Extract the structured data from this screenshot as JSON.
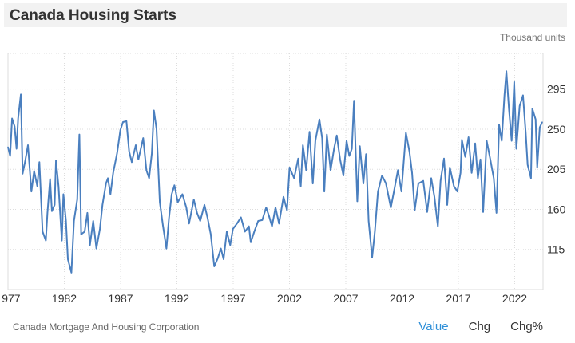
{
  "header": {
    "title": "Canada Housing Starts",
    "units": "Thousand units"
  },
  "footer": {
    "source": "Canada Mortgage And Housing Corporation",
    "tabs": [
      {
        "label": "Value",
        "active": true
      },
      {
        "label": "Chg",
        "active": false
      },
      {
        "label": "Chg%",
        "active": false
      }
    ]
  },
  "colors": {
    "line": "#4a7fbf",
    "active_tab": "#2e8fd8",
    "grid": "#dddddd"
  },
  "chart_data": {
    "type": "line",
    "title": "Canada Housing Starts",
    "ylabel": "Thousand units",
    "xlim": [
      1977,
      2024.45
    ],
    "ylim": [
      70,
      335
    ],
    "x_ticks": [
      1977,
      1982,
      1987,
      1992,
      1997,
      2002,
      2007,
      2012,
      2017,
      2022
    ],
    "y_ticks": [
      115,
      160,
      205,
      250,
      295
    ],
    "y_axis_position": "right",
    "grid": true,
    "series": [
      {
        "points": [
          [
            1977.0,
            230
          ],
          [
            1977.19,
            220
          ],
          [
            1977.36,
            262
          ],
          [
            1977.59,
            253
          ],
          [
            1977.76,
            228
          ],
          [
            1977.9,
            262
          ],
          [
            1978.14,
            289
          ],
          [
            1978.3,
            200
          ],
          [
            1978.54,
            215
          ],
          [
            1978.77,
            232
          ],
          [
            1979.08,
            180
          ],
          [
            1979.32,
            203
          ],
          [
            1979.6,
            186
          ],
          [
            1979.79,
            213
          ],
          [
            1980.07,
            135
          ],
          [
            1980.36,
            125
          ],
          [
            1980.5,
            156
          ],
          [
            1980.74,
            194
          ],
          [
            1980.9,
            158
          ],
          [
            1981.14,
            165
          ],
          [
            1981.26,
            215
          ],
          [
            1981.49,
            186
          ],
          [
            1981.78,
            125
          ],
          [
            1981.92,
            177
          ],
          [
            1982.15,
            147
          ],
          [
            1982.32,
            104
          ],
          [
            1982.63,
            89
          ],
          [
            1982.86,
            147
          ],
          [
            1983.15,
            171
          ],
          [
            1983.34,
            244
          ],
          [
            1983.5,
            132
          ],
          [
            1983.81,
            135
          ],
          [
            1984.05,
            156
          ],
          [
            1984.28,
            120
          ],
          [
            1984.57,
            147
          ],
          [
            1984.85,
            116
          ],
          [
            1985.16,
            138
          ],
          [
            1985.39,
            165
          ],
          [
            1985.7,
            189
          ],
          [
            1985.87,
            195
          ],
          [
            1986.1,
            177
          ],
          [
            1986.34,
            201
          ],
          [
            1986.69,
            223
          ],
          [
            1986.98,
            249
          ],
          [
            1987.21,
            258
          ],
          [
            1987.52,
            259
          ],
          [
            1987.76,
            225
          ],
          [
            1987.99,
            213
          ],
          [
            1988.35,
            232
          ],
          [
            1988.58,
            216
          ],
          [
            1989.01,
            240
          ],
          [
            1989.29,
            204
          ],
          [
            1989.53,
            195
          ],
          [
            1989.77,
            223
          ],
          [
            1989.96,
            271
          ],
          [
            1990.19,
            250
          ],
          [
            1990.48,
            168
          ],
          [
            1990.76,
            142
          ],
          [
            1991.07,
            116
          ],
          [
            1991.3,
            150
          ],
          [
            1991.54,
            177
          ],
          [
            1991.78,
            187
          ],
          [
            1992.08,
            168
          ],
          [
            1992.49,
            177
          ],
          [
            1992.84,
            162
          ],
          [
            1993.08,
            144
          ],
          [
            1993.5,
            171
          ],
          [
            1993.79,
            156
          ],
          [
            1994.07,
            147
          ],
          [
            1994.45,
            165
          ],
          [
            1994.73,
            150
          ],
          [
            1995.01,
            132
          ],
          [
            1995.32,
            96
          ],
          [
            1995.63,
            105
          ],
          [
            1995.91,
            116
          ],
          [
            1996.15,
            104
          ],
          [
            1996.43,
            135
          ],
          [
            1996.74,
            120
          ],
          [
            1996.98,
            138
          ],
          [
            1997.33,
            144
          ],
          [
            1997.69,
            151
          ],
          [
            1998.04,
            135
          ],
          [
            1998.4,
            141
          ],
          [
            1998.56,
            123
          ],
          [
            1998.87,
            135
          ],
          [
            1999.22,
            147
          ],
          [
            1999.58,
            148
          ],
          [
            1999.93,
            162
          ],
          [
            2000.17,
            153
          ],
          [
            2000.45,
            141
          ],
          [
            2000.76,
            162
          ],
          [
            2001.07,
            144
          ],
          [
            2001.47,
            174
          ],
          [
            2001.78,
            159
          ],
          [
            2002.01,
            207
          ],
          [
            2002.41,
            195
          ],
          [
            2002.77,
            217
          ],
          [
            2003.0,
            186
          ],
          [
            2003.19,
            232
          ],
          [
            2003.48,
            204
          ],
          [
            2003.78,
            247
          ],
          [
            2004.07,
            189
          ],
          [
            2004.3,
            237
          ],
          [
            2004.66,
            261
          ],
          [
            2004.9,
            240
          ],
          [
            2005.09,
            180
          ],
          [
            2005.32,
            244
          ],
          [
            2005.65,
            204
          ],
          [
            2005.96,
            228
          ],
          [
            2006.2,
            243
          ],
          [
            2006.5,
            216
          ],
          [
            2006.79,
            198
          ],
          [
            2007.07,
            237
          ],
          [
            2007.31,
            220
          ],
          [
            2007.54,
            228
          ],
          [
            2007.73,
            282
          ],
          [
            2008.02,
            169
          ],
          [
            2008.25,
            231
          ],
          [
            2008.56,
            189
          ],
          [
            2008.8,
            222
          ],
          [
            2009.03,
            147
          ],
          [
            2009.34,
            106
          ],
          [
            2009.58,
            135
          ],
          [
            2009.86,
            180
          ],
          [
            2010.22,
            198
          ],
          [
            2010.57,
            189
          ],
          [
            2011.0,
            162
          ],
          [
            2011.28,
            180
          ],
          [
            2011.63,
            204
          ],
          [
            2011.94,
            180
          ],
          [
            2012.34,
            246
          ],
          [
            2012.65,
            225
          ],
          [
            2012.89,
            201
          ],
          [
            2013.12,
            159
          ],
          [
            2013.45,
            189
          ],
          [
            2013.88,
            192
          ],
          [
            2014.23,
            157
          ],
          [
            2014.59,
            195
          ],
          [
            2014.87,
            174
          ],
          [
            2015.18,
            141
          ],
          [
            2015.42,
            192
          ],
          [
            2015.72,
            217
          ],
          [
            2016.01,
            165
          ],
          [
            2016.24,
            207
          ],
          [
            2016.6,
            186
          ],
          [
            2016.91,
            180
          ],
          [
            2017.19,
            201
          ],
          [
            2017.31,
            238
          ],
          [
            2017.61,
            219
          ],
          [
            2017.9,
            241
          ],
          [
            2018.18,
            201
          ],
          [
            2018.49,
            234
          ],
          [
            2018.73,
            195
          ],
          [
            2018.96,
            216
          ],
          [
            2019.2,
            157
          ],
          [
            2019.51,
            237
          ],
          [
            2019.84,
            216
          ],
          [
            2020.14,
            195
          ],
          [
            2020.38,
            156
          ],
          [
            2020.62,
            255
          ],
          [
            2020.85,
            237
          ],
          [
            2021.09,
            288
          ],
          [
            2021.26,
            315
          ],
          [
            2021.49,
            273
          ],
          [
            2021.73,
            237
          ],
          [
            2021.96,
            303
          ],
          [
            2022.15,
            228
          ],
          [
            2022.44,
            276
          ],
          [
            2022.74,
            288
          ],
          [
            2022.98,
            246
          ],
          [
            2023.15,
            210
          ],
          [
            2023.45,
            195
          ],
          [
            2023.57,
            273
          ],
          [
            2023.86,
            261
          ],
          [
            2024.0,
            207
          ],
          [
            2024.23,
            252
          ],
          [
            2024.45,
            258
          ]
        ]
      }
    ]
  }
}
